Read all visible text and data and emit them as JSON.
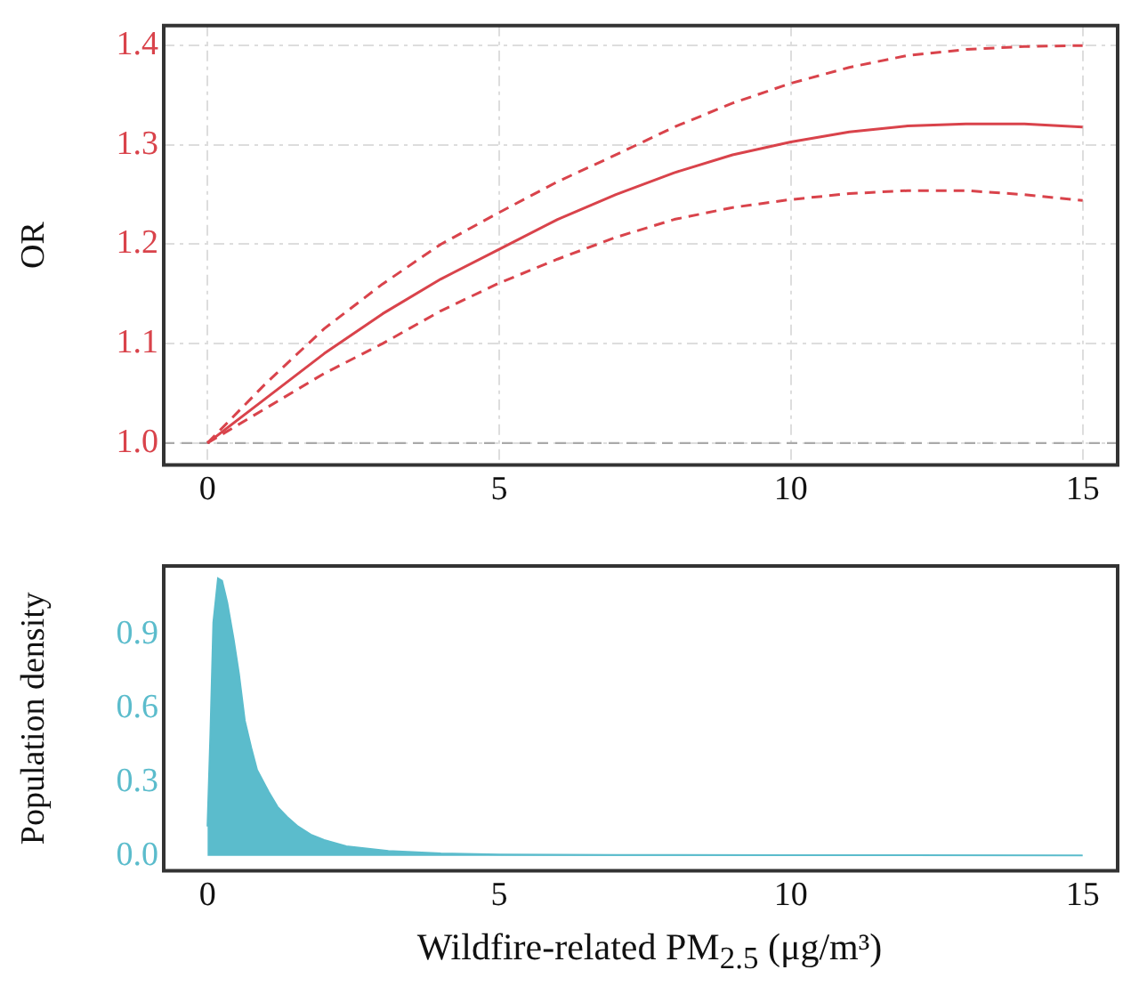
{
  "chart_data": [
    {
      "type": "line",
      "ylabel": "OR",
      "xlim": [
        -0.75,
        15.6
      ],
      "xticks": [
        0,
        5,
        10,
        15
      ],
      "ylim": [
        0.978,
        1.42
      ],
      "yticks": [
        {
          "value": 1.0,
          "label": "1.0"
        },
        1.1,
        1.2,
        1.3,
        1.4
      ],
      "grid": true,
      "line_style": "solid",
      "x": [
        0,
        1,
        2,
        3,
        4,
        5,
        6,
        7,
        8,
        9,
        10,
        11,
        12,
        13,
        14,
        15
      ],
      "series": [
        {
          "color": "#d9434b",
          "values": [
            1.0,
            1.045,
            1.09,
            1.13,
            1.165,
            1.195,
            1.225,
            1.25,
            1.272,
            1.29,
            1.303,
            1.313,
            1.319,
            1.321,
            1.321,
            1.318
          ]
        },
        {
          "color": "#d9434b",
          "line_style": "dashed",
          "values": [
            1.0,
            1.035,
            1.07,
            1.1,
            1.133,
            1.161,
            1.185,
            1.207,
            1.225,
            1.237,
            1.245,
            1.251,
            1.254,
            1.254,
            1.25,
            1.244
          ]
        },
        {
          "color": "#d9434b",
          "line_style": "dashed",
          "values": [
            1.0,
            1.06,
            1.115,
            1.16,
            1.2,
            1.232,
            1.263,
            1.29,
            1.318,
            1.342,
            1.362,
            1.378,
            1.39,
            1.396,
            1.399,
            1.4
          ]
        }
      ],
      "ref_lines": [
        {
          "axis": "y",
          "value": 1.0,
          "color": "#aaaaaa",
          "line_style": "dashed"
        }
      ]
    },
    {
      "type": "area",
      "ylabel": "Population density",
      "xlabel": "Wildfire-related PM$_{2.5}$ (μg/m³)",
      "xlim": [
        -0.75,
        15.6
      ],
      "xticks": [
        0,
        5,
        10,
        15
      ],
      "ylim": [
        -0.06,
        1.18
      ],
      "yticks": [
        {
          "value": 0,
          "label": "0.0"
        },
        0.3,
        0.6,
        0.9
      ],
      "grid": false,
      "x": [
        0,
        0.05,
        0.1,
        0.18,
        0.25,
        0.34,
        0.45,
        0.54,
        0.64,
        0.75,
        0.85,
        1.05,
        1.2,
        1.36,
        1.55,
        1.77,
        2,
        2.38,
        3.1,
        4,
        5,
        7,
        10,
        15
      ],
      "series": [
        {
          "color": "#5bbccc",
          "values": [
            0.12,
            0.5,
            0.95,
            1.13,
            1.12,
            1.03,
            0.88,
            0.74,
            0.55,
            0.44,
            0.35,
            0.26,
            0.2,
            0.16,
            0.12,
            0.087,
            0.065,
            0.039,
            0.02,
            0.01,
            0.006,
            0.004,
            0.003,
            0.002
          ]
        }
      ]
    }
  ]
}
